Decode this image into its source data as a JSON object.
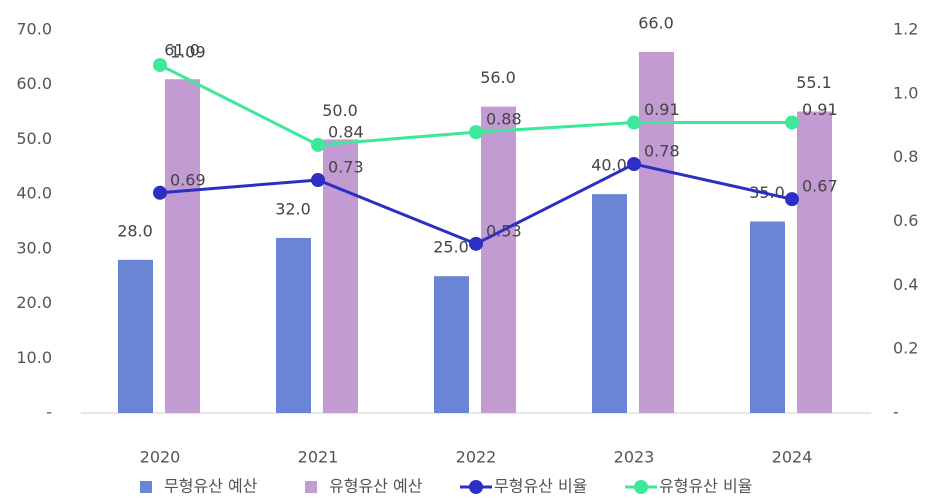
{
  "chart_data": {
    "type": "bar-line",
    "categories": [
      "2020",
      "2021",
      "2022",
      "2023",
      "2024"
    ],
    "series": [
      {
        "name": "무형유산 예산",
        "color": "#6a84d6",
        "kind": "bar",
        "values": [
          28,
          32,
          25,
          40,
          35
        ],
        "value_labels": [
          "28.0",
          "32.0",
          "25.0",
          "40.0",
          "35.0"
        ]
      },
      {
        "name": "유형유산 예산",
        "color": "#c39bd3",
        "kind": "bar",
        "values": [
          61,
          50,
          56,
          66,
          55.1
        ],
        "value_labels": [
          "61.0",
          "50.0",
          "56.0",
          "66.0",
          "55.1"
        ]
      },
      {
        "name": "무형유산 비율",
        "color": "#2b2fc4",
        "kind": "line",
        "axis": "y2",
        "values": [
          0.69,
          0.73,
          0.53,
          0.78,
          0.67
        ]
      },
      {
        "name": "유형유산 비율",
        "color": "#3ee89a",
        "kind": "line",
        "axis": "y2",
        "values": [
          1.09,
          0.84,
          0.88,
          0.91,
          0.91
        ]
      }
    ],
    "ylim": [
      0,
      70
    ],
    "yticks": [
      {
        "value": 0,
        "label": "-"
      },
      {
        "value": 10,
        "label": "10.0"
      },
      {
        "value": 20,
        "label": "20.0"
      },
      {
        "value": 30,
        "label": "30.0"
      },
      {
        "value": 40,
        "label": "40.0"
      },
      {
        "value": 50,
        "label": "50.0"
      },
      {
        "value": 60,
        "label": "60.0"
      },
      {
        "value": 70,
        "label": "70.0"
      }
    ],
    "y2lim": [
      0,
      1.2
    ],
    "y2ticks": [
      {
        "value": 0,
        "label": "-"
      },
      0.2,
      0.4,
      0.6,
      0.8,
      {
        "value": 1,
        "label": "1.0"
      },
      1.2
    ],
    "legend": "bottom"
  }
}
